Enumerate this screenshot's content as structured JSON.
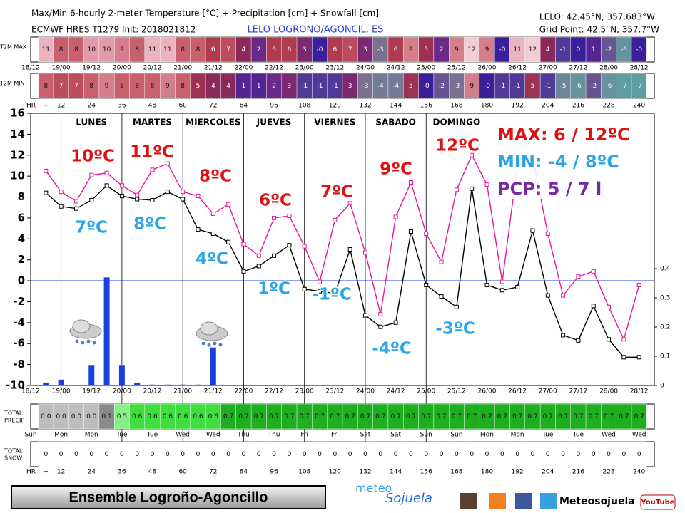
{
  "header": {
    "title": "Max/Min 6-hourly 2-meter Temperature [°C] + Precipitation [cm] + Snowfall [cm]",
    "model": "ECMWF HRES T1279 Init: 2018021812",
    "station": "LELO LOGRONO/AGONCIL, ES",
    "station_coords": "LELO: 42.45°N, 357.683°W",
    "grid_point": "Grid Point: 42.5°N, 357.7°W"
  },
  "chart_data": {
    "type": "meteogram",
    "x": [
      6,
      12,
      18,
      24,
      30,
      36,
      42,
      48,
      54,
      60,
      66,
      72,
      78,
      84,
      90,
      96,
      102,
      108,
      114,
      120,
      126,
      132,
      138,
      144,
      150,
      156,
      162,
      168,
      174,
      180,
      186,
      192,
      198,
      204,
      210,
      216,
      222,
      228,
      234,
      240
    ],
    "xlim": [
      0,
      246
    ],
    "ylim": [
      -10,
      16
    ],
    "yticks": [
      -10,
      -8,
      -6,
      -4,
      -2,
      0,
      2,
      4,
      6,
      8,
      10,
      12,
      14,
      16
    ],
    "y2lim": [
      0,
      0.932
    ],
    "y2ticks": [
      0,
      0.1,
      0.2,
      0.3,
      0.4
    ],
    "zero_line": 0,
    "date_ticks": [
      {
        "value": 0,
        "label": "18/12"
      },
      {
        "value": 12,
        "label": "19/00"
      },
      {
        "value": 24,
        "label": "19/12"
      },
      {
        "value": 36,
        "label": "20/00"
      },
      {
        "value": 48,
        "label": "20/12"
      },
      {
        "value": 60,
        "label": "21/00"
      },
      {
        "value": 72,
        "label": "21/12"
      },
      {
        "value": 84,
        "label": "22/00"
      },
      {
        "value": 96,
        "label": "22/12"
      },
      {
        "value": 108,
        "label": "23/00"
      },
      {
        "value": 120,
        "label": "23/12"
      },
      {
        "value": 132,
        "label": "24/00"
      },
      {
        "value": 144,
        "label": "24/12"
      },
      {
        "value": 156,
        "label": "25/00"
      },
      {
        "value": 168,
        "label": "25/12"
      },
      {
        "value": 180,
        "label": "26/00"
      },
      {
        "value": 192,
        "label": "26/12"
      },
      {
        "value": 204,
        "label": "27/00"
      },
      {
        "value": 216,
        "label": "27/12"
      },
      {
        "value": 228,
        "label": "28/00"
      },
      {
        "value": 240,
        "label": "28/12"
      }
    ],
    "hr_ticks": [
      {
        "value": 6,
        "label": "+"
      },
      12,
      24,
      36,
      48,
      60,
      72,
      84,
      96,
      108,
      120,
      132,
      144,
      156,
      168,
      180,
      192,
      204,
      216,
      228,
      240
    ],
    "weekday_ticks": [
      {
        "value": 0,
        "label": "Sun"
      },
      {
        "value": 12,
        "label": "Mon"
      },
      {
        "value": 24,
        "label": "Mon"
      },
      {
        "value": 36,
        "label": "Tue"
      },
      {
        "value": 48,
        "label": "Tue"
      },
      {
        "value": 60,
        "label": "Wed"
      },
      {
        "value": 72,
        "label": "Wed"
      },
      {
        "value": 84,
        "label": "Thu"
      },
      {
        "value": 96,
        "label": "Thu"
      },
      {
        "value": 108,
        "label": "Fri"
      },
      {
        "value": 120,
        "label": "Fri"
      },
      {
        "value": 132,
        "label": "Sat"
      },
      {
        "value": 144,
        "label": "Sat"
      },
      {
        "value": 156,
        "label": "Sun"
      },
      {
        "value": 168,
        "label": "Sun"
      },
      {
        "value": 180,
        "label": "Mon"
      },
      {
        "value": 192,
        "label": "Mon"
      },
      {
        "value": 204,
        "label": "Tue"
      },
      {
        "value": 216,
        "label": "Tue"
      },
      {
        "value": 228,
        "label": "Wed"
      },
      {
        "value": 240,
        "label": "Wed"
      }
    ],
    "day_dividers": [
      12,
      36,
      60,
      84,
      108,
      132,
      156,
      180
    ],
    "day_names": [
      "LUNES",
      "MARTES",
      "MIERCOLES",
      "JUEVES",
      "VIERNES",
      "SABADO",
      "DOMINGO"
    ],
    "series": [
      {
        "name": "T2M MAX",
        "color": "#e8189a",
        "values": [
          10.5,
          8.5,
          7.6,
          10.1,
          10.3,
          9.1,
          8.2,
          10.6,
          11.2,
          8.5,
          8.1,
          6.4,
          7.3,
          3.5,
          2.4,
          6.0,
          6.2,
          3.3,
          -0.1,
          5.8,
          7.4,
          2.7,
          -3.2,
          6.1,
          9.4,
          4.5,
          1.8,
          8.7,
          12.0,
          9.2,
          -0.1,
          11.0,
          11.8,
          4.5,
          -1.4,
          0.4,
          0.9,
          -2.5,
          -5.6,
          -0.4
        ]
      },
      {
        "name": "T2M MIN",
        "color": "#000000",
        "values": [
          8.4,
          7.1,
          6.9,
          7.7,
          9.1,
          8.1,
          7.8,
          7.7,
          8.5,
          7.8,
          4.9,
          4.5,
          3.7,
          0.9,
          1.4,
          2.4,
          3.4,
          -0.8,
          -1.0,
          -1.2,
          3.0,
          -3.3,
          -4.4,
          -4.0,
          4.7,
          -0.4,
          -1.5,
          -2.5,
          8.8,
          -0.4,
          -0.9,
          -0.6,
          4.8,
          -1.4,
          -5.2,
          -5.7,
          -2.4,
          -5.6,
          -7.3,
          -7.3
        ]
      },
      {
        "color": "#1a3fe0",
        "axis": "y2",
        "values": [
          0.01,
          0.02,
          0,
          0.07,
          0.37,
          0.07,
          0.01,
          0.003,
          0.003,
          0.003,
          0.003,
          0.13,
          0,
          0,
          0,
          0,
          0,
          0,
          0,
          0,
          0,
          0,
          0,
          0,
          0,
          0,
          0,
          0,
          0,
          0,
          0,
          0,
          0,
          0,
          0,
          0,
          0,
          0,
          0,
          0
        ]
      }
    ],
    "max_cells": [
      "11",
      "8",
      "8",
      "10",
      "10",
      "9",
      "8",
      "11",
      "11",
      "8",
      "8",
      "6",
      "7",
      "4",
      "2",
      "6",
      "6",
      "3",
      "-0",
      "6",
      "7",
      "3",
      "-3",
      "6",
      "9",
      "5",
      "2",
      "9",
      "12",
      "9",
      "-0",
      "11",
      "12",
      "4",
      "-1",
      "0",
      "1",
      "-2",
      "-6",
      "-0"
    ],
    "min_cells": [
      "8",
      "7",
      "7",
      "8",
      "9",
      "8",
      "8",
      "8",
      "9",
      "8",
      "5",
      "4",
      "4",
      "1",
      "1",
      "2",
      "3",
      "-1",
      "-1",
      "-1",
      "3",
      "-3",
      "-4",
      "-4",
      "5",
      "-0",
      "-2",
      "-3",
      "9",
      "-0",
      "-1",
      "-1",
      "5",
      "-1",
      "-5",
      "-6",
      "-2",
      "-6",
      "-7",
      "-7"
    ],
    "precip_cells": [
      "0.0",
      "0.0",
      "0.0",
      "0.0",
      "0.1",
      "0.5",
      "0.6",
      "0.6",
      "0.6",
      "0.6",
      "0.6",
      "0.6",
      "0.7",
      "0.7",
      "0.7",
      "0.7",
      "0.7",
      "0.7",
      "0.7",
      "0.7",
      "0.7",
      "0.7",
      "0.7",
      "0.7",
      "0.7",
      "0.7",
      "0.7",
      "0.7",
      "0.7",
      "0.7",
      "0.7",
      "0.7",
      "0.7",
      "0.7",
      "0.7",
      "0.7",
      "0.7",
      "0.7",
      "0.7",
      "0.7"
    ],
    "snow_cells": [
      "0",
      "0",
      "0",
      "0",
      "0",
      "0",
      "0",
      "0",
      "0",
      "0",
      "0",
      "0",
      "0",
      "0",
      "0",
      "0",
      "0",
      "0",
      "0",
      "0",
      "0",
      "0",
      "0",
      "0",
      "0",
      "0",
      "0",
      "0",
      "0",
      "0",
      "0",
      "0",
      "0",
      "0",
      "0",
      "0",
      "0",
      "0",
      "0",
      "0"
    ],
    "row_labels": {
      "hr": "HR",
      "precip": [
        "TOTAL",
        "PRECIP"
      ],
      "snow": [
        "TOTAL",
        "SNOW"
      ]
    },
    "annotations": {
      "max_labels": [
        "10ºC",
        "11ºC",
        "8ºC",
        "6ºC",
        "7ºC",
        "9ºC",
        "12ºC"
      ],
      "min_labels": [
        "7ºC",
        "8ºC",
        "4ºC",
        "1ºC",
        "-1ºC",
        "-4ºC",
        "-3ºC"
      ],
      "summary": [
        "MAX: 6 / 12ºC",
        "MIN: -4 / 8ºC",
        "PCP: 5 / 7 l"
      ]
    }
  },
  "footer": {
    "banner": "Ensemble Logroño-Agoncillo",
    "logo": "meteo",
    "logo2": "Sojuela",
    "social": "Meteosojuela",
    "youtube": "YouTube"
  }
}
